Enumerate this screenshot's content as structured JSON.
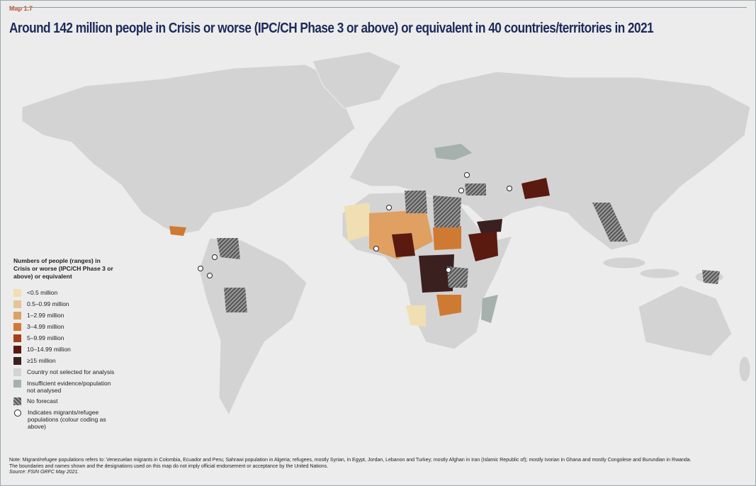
{
  "header": {
    "label": "Map 1.7",
    "title": "Around 142 million people in Crisis or worse (IPC/CH Phase 3 or above) or equivalent in 40 countries/territories in 2021"
  },
  "legend": {
    "title": "Numbers of people (ranges) in Crisis or worse (IPC/CH Phase 3 or above) or equivalent",
    "items": [
      {
        "label": "<0.5 million",
        "color": "#efdfb2"
      },
      {
        "label": "0.5–0.99 million",
        "color": "#e5c39b"
      },
      {
        "label": "1–2.99 million",
        "color": "#dfa062"
      },
      {
        "label": "3–4.99 million",
        "color": "#cf7a32"
      },
      {
        "label": "5–9.99 million",
        "color": "#a5401b"
      },
      {
        "label": "10–14.99 million",
        "color": "#5a1a10"
      },
      {
        "label": "≥15 million",
        "color": "#3b2020"
      },
      {
        "label": "Country not selected for analysis",
        "color": "#d3d3d3"
      },
      {
        "label": "Insufficient evidence/population not analysed",
        "color": "#a6b1ad"
      },
      {
        "label": "No forecast",
        "pattern": "hatch"
      },
      {
        "label": "Indicates migrants/refugee populations (colour coding as above)",
        "pattern": "circle"
      }
    ]
  },
  "notes": {
    "note": "Note: Migrant/refugee populations refers to: Venezuelan migrants in Colombia, Ecuador and Peru; Sahrawi population in Algeria; refugees, mostly Syrian, in Egypt, Jordan, Lebanon and Turkey; mostly Afghan in Iran (Islamic Republic of); mostly Ivorian in Ghana and mostly Congolese and Burundian in Rwanda.",
    "disclaimer": "The boundaries and names shown and the designations used on this map do not imply official endorsement or acceptance by the United Nations.",
    "source": "Source: FSIN GRFC May 2021."
  }
}
